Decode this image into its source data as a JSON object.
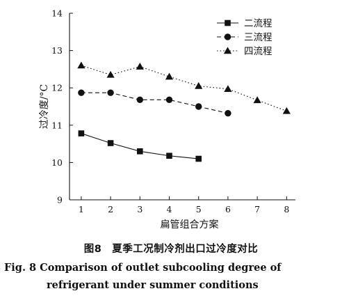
{
  "chart_data": {
    "type": "line",
    "xlabel": "扁管组合方案",
    "ylabel": "过冷度/°C",
    "xlim": [
      0.6,
      8.3
    ],
    "ylim": [
      9,
      14
    ],
    "x_ticks": [
      1,
      2,
      3,
      4,
      5,
      6,
      7,
      8
    ],
    "y_ticks": [
      9,
      10,
      11,
      12,
      13,
      14
    ],
    "grid": false,
    "legend_position": "top-right",
    "series": [
      {
        "name": "二流程",
        "marker": "square",
        "line_style": "solid",
        "x": [
          1,
          2,
          3,
          4,
          5
        ],
        "values": [
          10.78,
          10.52,
          10.3,
          10.18,
          10.1
        ]
      },
      {
        "name": "三流程",
        "marker": "circle",
        "line_style": "dashed",
        "x": [
          1,
          2,
          3,
          4,
          5,
          6
        ],
        "values": [
          11.87,
          11.87,
          11.68,
          11.68,
          11.5,
          11.32
        ]
      },
      {
        "name": "四流程",
        "marker": "triangle",
        "line_style": "dotted",
        "x": [
          1,
          2,
          3,
          4,
          5,
          6,
          7,
          8
        ],
        "values": [
          12.6,
          12.35,
          12.57,
          12.3,
          12.05,
          11.97,
          11.67,
          11.38
        ]
      }
    ]
  },
  "caption": {
    "cn": "图8　夏季工况制冷剂出口过冷度对比",
    "en_line1": "Fig. 8   Comparison of outlet subcooling degree of",
    "en_line2": "refrigerant under summer conditions"
  },
  "colors": {
    "ink": "#111111",
    "background": "#ffffff"
  }
}
